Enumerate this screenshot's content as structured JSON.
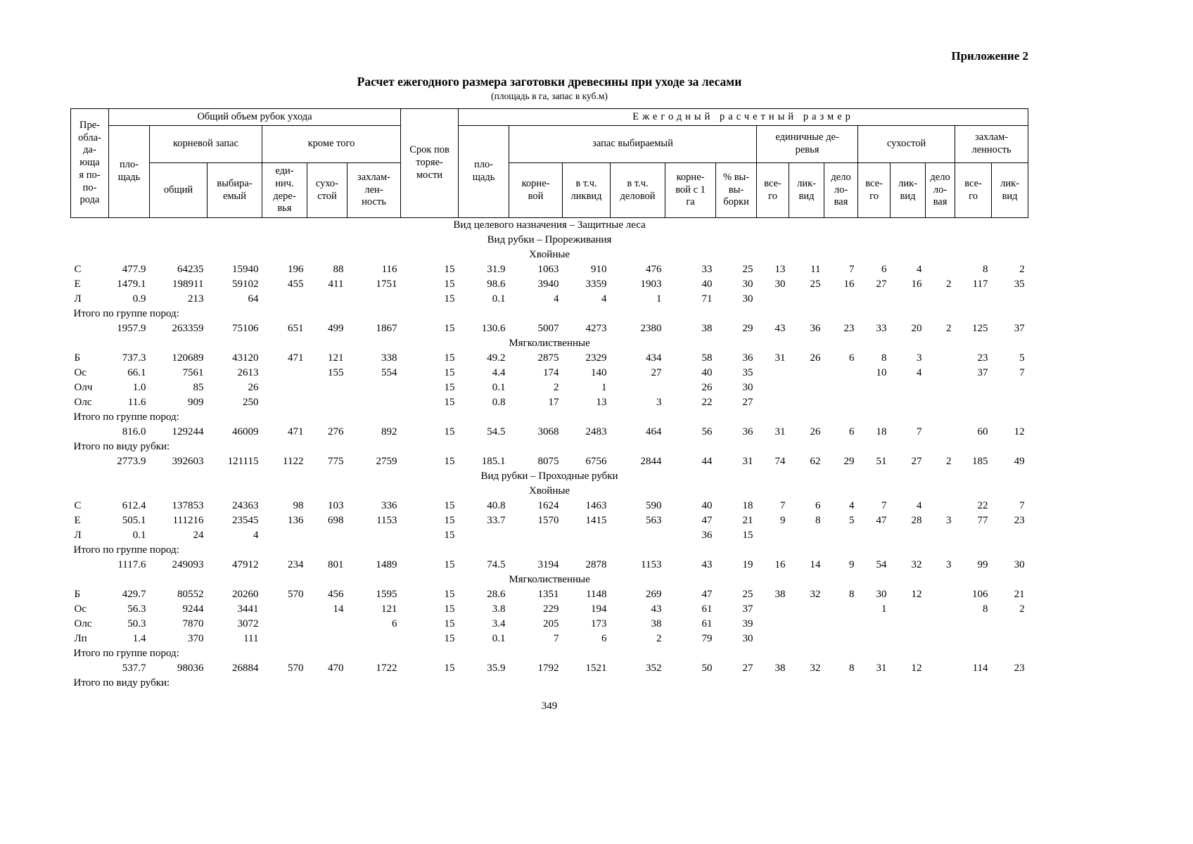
{
  "page": {
    "appendix": "Приложение 2",
    "title": "Расчет ежегодного размера заготовки древесины при уходе за лесами",
    "subtitle": "(площадь в га, запас в куб.м)",
    "page_number": "349"
  },
  "table": {
    "header": {
      "species": "Пре-\nобла-\nда-\nюща\nя по-\nпо-\nрода",
      "group_total_volume": "Общий объем рубок ухода",
      "group_annual": "Ежегодный расчетный размер",
      "area": "пло-\nщадь",
      "root_stock_group": "корневой запас",
      "root_total": "общий",
      "root_selected": "выбира-\nемый",
      "besides_group": "кроме того",
      "single_trees": "еди-\nнич.\nдере-\nвья",
      "dead_standing": "сухо-\nстой",
      "debris": "захлам-\nлен-\nность",
      "period": "Срок пов\nторяе-\nмости",
      "selected_stock_group": "запас выбираемый",
      "root": "корне-\nвой",
      "incl_liquid": "в т.ч.\nликвид",
      "incl_business": "в т.ч.\nделовой",
      "root_per_ha": "корне-\nвой с 1\nга",
      "pct_selection": "% вы-\nвы-\nборки",
      "single_trees_group": "единичные де-\nревья",
      "dead_group": "сухостой",
      "debris_group": "захлам-\nленность",
      "total": "все-\nго",
      "liquid": "лик-\nвид",
      "business": "дело\nло-\nвая"
    },
    "rows": [
      {
        "type": "section",
        "text": "Вид целевого назначения – Защитные леса"
      },
      {
        "type": "section",
        "text": "Вид рубки – Прореживания"
      },
      {
        "type": "section",
        "text": "Хвойные"
      },
      {
        "type": "data",
        "cells": [
          "С",
          "477.9",
          "64235",
          "15940",
          "196",
          "88",
          "116",
          "15",
          "31.9",
          "1063",
          "910",
          "476",
          "33",
          "25",
          "13",
          "11",
          "7",
          "6",
          "4",
          "",
          "8",
          "2"
        ]
      },
      {
        "type": "data",
        "cells": [
          "Е",
          "1479.1",
          "198911",
          "59102",
          "455",
          "411",
          "1751",
          "15",
          "98.6",
          "3940",
          "3359",
          "1903",
          "40",
          "30",
          "30",
          "25",
          "16",
          "27",
          "16",
          "2",
          "117",
          "35"
        ]
      },
      {
        "type": "data",
        "cells": [
          "Л",
          "0.9",
          "213",
          "64",
          "",
          "",
          "",
          "15",
          "0.1",
          "4",
          "4",
          "1",
          "71",
          "30",
          "",
          "",
          "",
          "",
          "",
          "",
          "",
          ""
        ]
      },
      {
        "type": "label",
        "text": "Итого по группе пород:"
      },
      {
        "type": "data",
        "cells": [
          "",
          "1957.9",
          "263359",
          "75106",
          "651",
          "499",
          "1867",
          "15",
          "130.6",
          "5007",
          "4273",
          "2380",
          "38",
          "29",
          "43",
          "36",
          "23",
          "33",
          "20",
          "2",
          "125",
          "37"
        ]
      },
      {
        "type": "section",
        "text": "Мягколиственные"
      },
      {
        "type": "data",
        "cells": [
          "Б",
          "737.3",
          "120689",
          "43120",
          "471",
          "121",
          "338",
          "15",
          "49.2",
          "2875",
          "2329",
          "434",
          "58",
          "36",
          "31",
          "26",
          "6",
          "8",
          "3",
          "",
          "23",
          "5"
        ]
      },
      {
        "type": "data",
        "cells": [
          "Ос",
          "66.1",
          "7561",
          "2613",
          "",
          "155",
          "554",
          "15",
          "4.4",
          "174",
          "140",
          "27",
          "40",
          "35",
          "",
          "",
          "",
          "10",
          "4",
          "",
          "37",
          "7"
        ]
      },
      {
        "type": "data",
        "cells": [
          "Олч",
          "1.0",
          "85",
          "26",
          "",
          "",
          "",
          "15",
          "0.1",
          "2",
          "1",
          "",
          "26",
          "30",
          "",
          "",
          "",
          "",
          "",
          "",
          "",
          ""
        ]
      },
      {
        "type": "data",
        "cells": [
          "Олс",
          "11.6",
          "909",
          "250",
          "",
          "",
          "",
          "15",
          "0.8",
          "17",
          "13",
          "3",
          "22",
          "27",
          "",
          "",
          "",
          "",
          "",
          "",
          "",
          ""
        ]
      },
      {
        "type": "label",
        "text": "Итого по группе пород:"
      },
      {
        "type": "data",
        "cells": [
          "",
          "816.0",
          "129244",
          "46009",
          "471",
          "276",
          "892",
          "15",
          "54.5",
          "3068",
          "2483",
          "464",
          "56",
          "36",
          "31",
          "26",
          "6",
          "18",
          "7",
          "",
          "60",
          "12"
        ]
      },
      {
        "type": "label",
        "text": "Итого по виду рубки:"
      },
      {
        "type": "data",
        "cells": [
          "",
          "2773.9",
          "392603",
          "121115",
          "1122",
          "775",
          "2759",
          "15",
          "185.1",
          "8075",
          "6756",
          "2844",
          "44",
          "31",
          "74",
          "62",
          "29",
          "51",
          "27",
          "2",
          "185",
          "49"
        ]
      },
      {
        "type": "section",
        "text": "Вид рубки – Проходные рубки"
      },
      {
        "type": "section",
        "text": "Хвойные"
      },
      {
        "type": "data",
        "cells": [
          "С",
          "612.4",
          "137853",
          "24363",
          "98",
          "103",
          "336",
          "15",
          "40.8",
          "1624",
          "1463",
          "590",
          "40",
          "18",
          "7",
          "6",
          "4",
          "7",
          "4",
          "",
          "22",
          "7"
        ]
      },
      {
        "type": "data",
        "cells": [
          "Е",
          "505.1",
          "111216",
          "23545",
          "136",
          "698",
          "1153",
          "15",
          "33.7",
          "1570",
          "1415",
          "563",
          "47",
          "21",
          "9",
          "8",
          "5",
          "47",
          "28",
          "3",
          "77",
          "23"
        ]
      },
      {
        "type": "data",
        "cells": [
          "Л",
          "0.1",
          "24",
          "4",
          "",
          "",
          "",
          "15",
          "",
          "",
          "",
          "",
          "36",
          "15",
          "",
          "",
          "",
          "",
          "",
          "",
          "",
          ""
        ]
      },
      {
        "type": "label",
        "text": "Итого по группе пород:"
      },
      {
        "type": "data",
        "cells": [
          "",
          "1117.6",
          "249093",
          "47912",
          "234",
          "801",
          "1489",
          "15",
          "74.5",
          "3194",
          "2878",
          "1153",
          "43",
          "19",
          "16",
          "14",
          "9",
          "54",
          "32",
          "3",
          "99",
          "30"
        ]
      },
      {
        "type": "section",
        "text": "Мягколиственные"
      },
      {
        "type": "data",
        "cells": [
          "Б",
          "429.7",
          "80552",
          "20260",
          "570",
          "456",
          "1595",
          "15",
          "28.6",
          "1351",
          "1148",
          "269",
          "47",
          "25",
          "38",
          "32",
          "8",
          "30",
          "12",
          "",
          "106",
          "21"
        ]
      },
      {
        "type": "data",
        "cells": [
          "Ос",
          "56.3",
          "9244",
          "3441",
          "",
          "14",
          "121",
          "15",
          "3.8",
          "229",
          "194",
          "43",
          "61",
          "37",
          "",
          "",
          "",
          "1",
          "",
          "",
          "8",
          "2"
        ]
      },
      {
        "type": "data",
        "cells": [
          "Олс",
          "50.3",
          "7870",
          "3072",
          "",
          "",
          "6",
          "15",
          "3.4",
          "205",
          "173",
          "38",
          "61",
          "39",
          "",
          "",
          "",
          "",
          "",
          "",
          "",
          ""
        ]
      },
      {
        "type": "data",
        "cells": [
          "Лп",
          "1.4",
          "370",
          "111",
          "",
          "",
          "",
          "15",
          "0.1",
          "7",
          "6",
          "2",
          "79",
          "30",
          "",
          "",
          "",
          "",
          "",
          "",
          "",
          ""
        ]
      },
      {
        "type": "label",
        "text": "Итого по группе пород:"
      },
      {
        "type": "data",
        "cells": [
          "",
          "537.7",
          "98036",
          "26884",
          "570",
          "470",
          "1722",
          "15",
          "35.9",
          "1792",
          "1521",
          "352",
          "50",
          "27",
          "38",
          "32",
          "8",
          "31",
          "12",
          "",
          "114",
          "23"
        ]
      },
      {
        "type": "label",
        "text": "Итого по виду рубки:"
      }
    ]
  }
}
